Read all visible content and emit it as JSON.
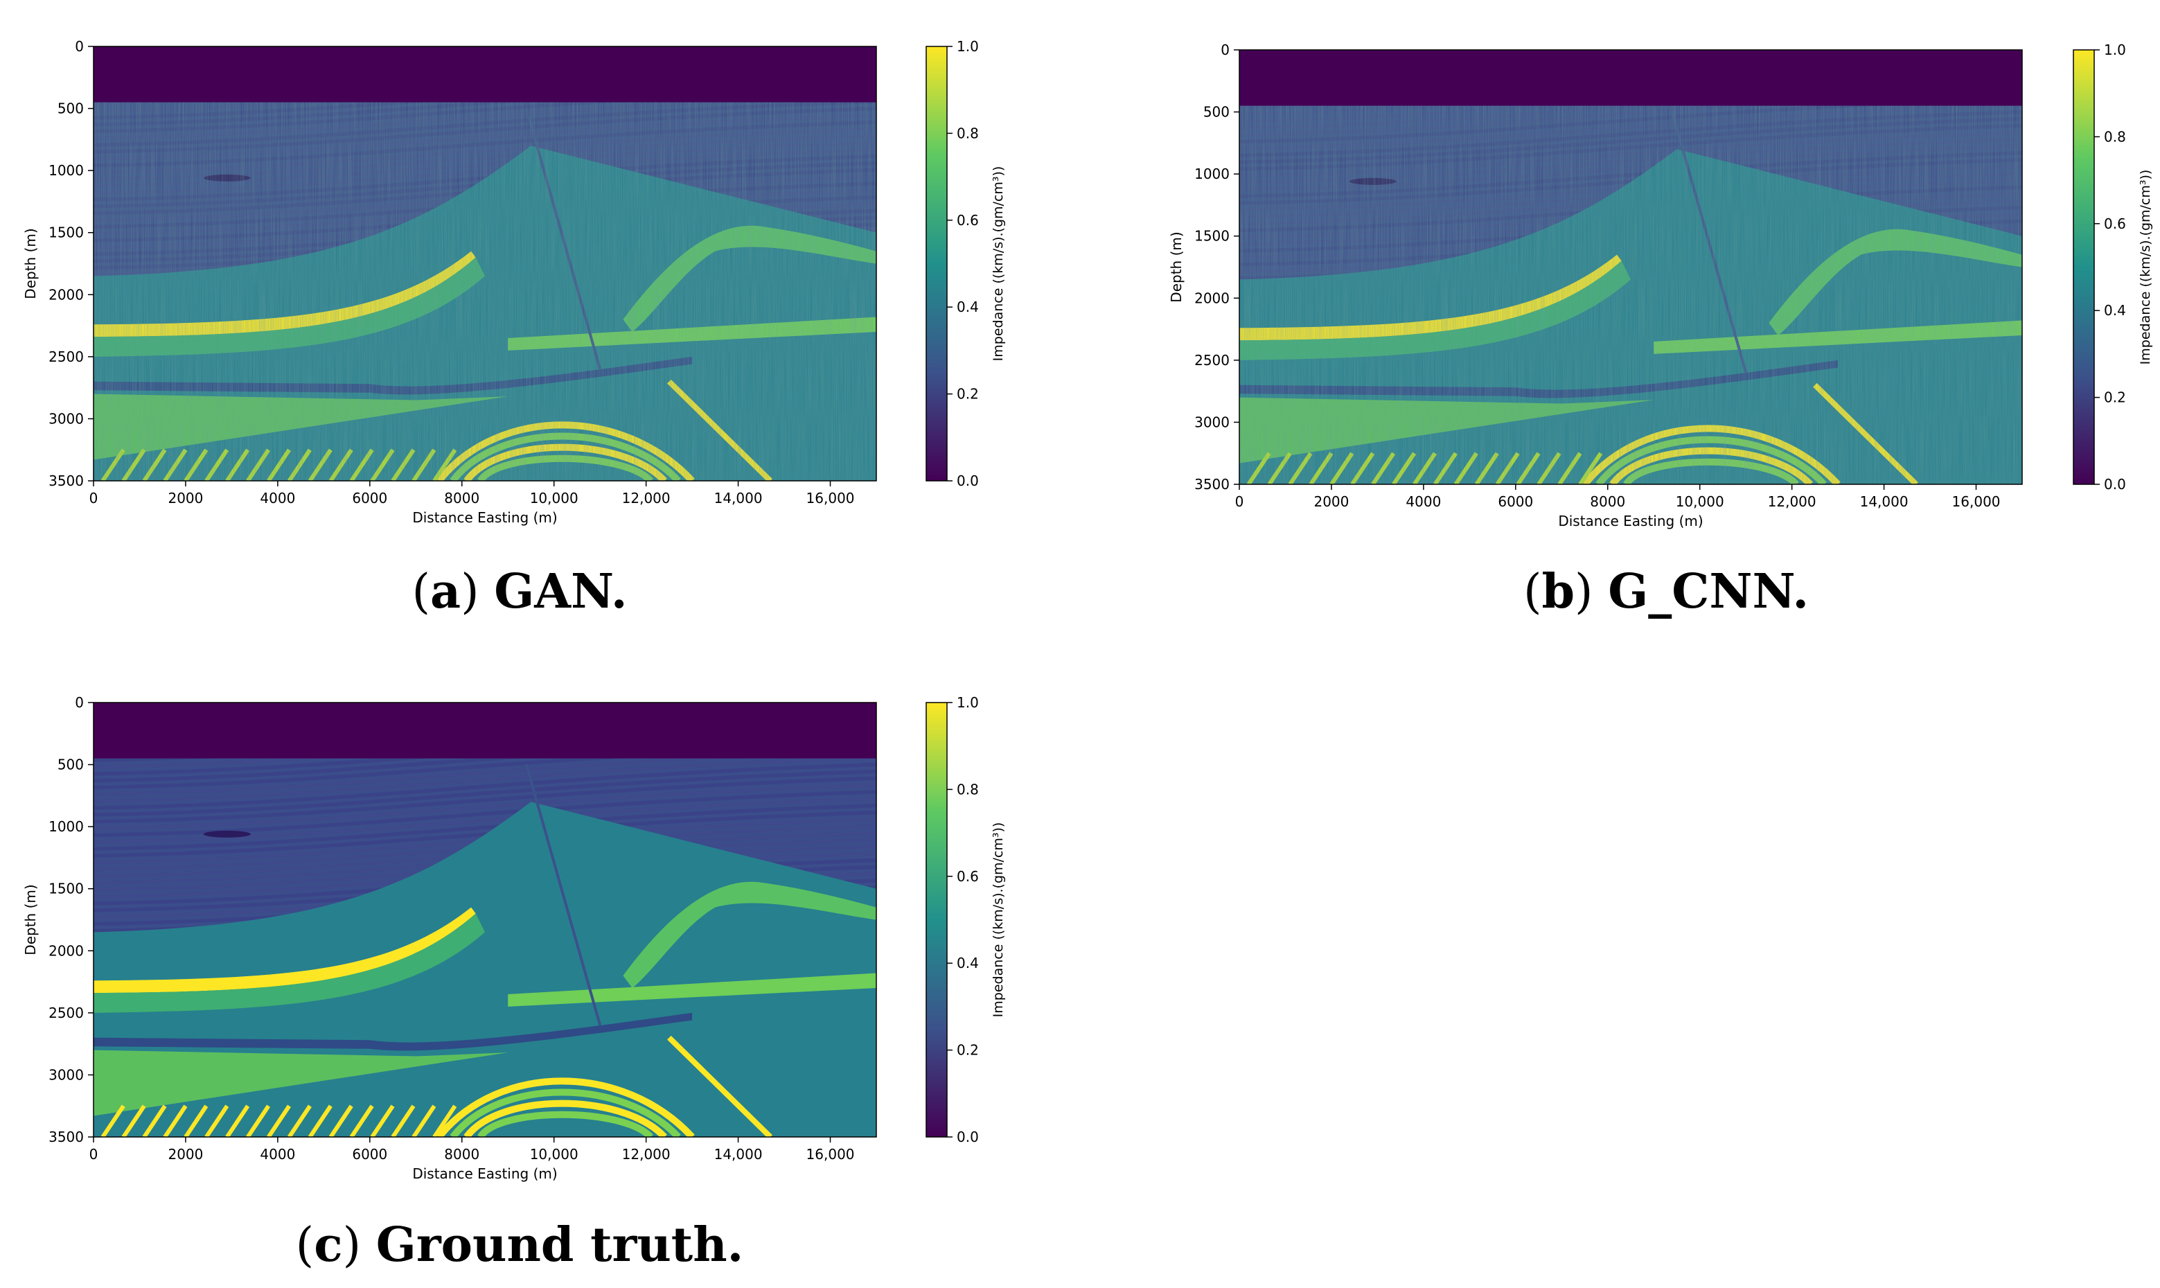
{
  "colorscale": [
    "#440154",
    "#3b528b",
    "#21918c",
    "#5ec962",
    "#fde725"
  ],
  "panels": [
    {
      "label": "(a)",
      "title": "GAN."
    },
    {
      "label": "(b)",
      "title": "G_CNN."
    },
    {
      "label": "(c)",
      "title": "Ground truth."
    }
  ],
  "chart_data": [
    {
      "type": "heatmap",
      "title": "",
      "xlabel": "Distance Easting (m)",
      "ylabel": "Depth (m)",
      "xlim": [
        0,
        17000
      ],
      "ylim": [
        3500,
        0
      ],
      "x_ticks": [
        0,
        2000,
        4000,
        6000,
        8000,
        10000,
        12000,
        14000,
        16000
      ],
      "x_tick_labels": [
        "0",
        "2000",
        "4000",
        "6000",
        "8000",
        "10,000",
        "12,000",
        "14,000",
        "16,000"
      ],
      "y_ticks": [
        0,
        500,
        1000,
        1500,
        2000,
        2500,
        3000,
        3500
      ],
      "y_tick_labels": [
        "0",
        "500",
        "1000",
        "1500",
        "2000",
        "2500",
        "3000",
        "3500"
      ],
      "colorbar": {
        "label": "Impedance ((km/s).(gm/cm³))",
        "range": [
          0,
          1
        ],
        "ticks": [
          "0.0",
          "0.2",
          "0.4",
          "0.6",
          "0.8",
          "1.0"
        ]
      }
    },
    {
      "type": "heatmap",
      "title": "",
      "xlabel": "Distance Easting (m)",
      "ylabel": "Depth (m)",
      "xlim": [
        0,
        17000
      ],
      "ylim": [
        3500,
        0
      ],
      "x_ticks": [
        0,
        2000,
        4000,
        6000,
        8000,
        10000,
        12000,
        14000,
        16000
      ],
      "x_tick_labels": [
        "0",
        "2000",
        "4000",
        "6000",
        "8000",
        "10,000",
        "12,000",
        "14,000",
        "16,000"
      ],
      "y_ticks": [
        0,
        500,
        1000,
        1500,
        2000,
        2500,
        3000,
        3500
      ],
      "y_tick_labels": [
        "0",
        "500",
        "1000",
        "1500",
        "2000",
        "2500",
        "3000",
        "3500"
      ],
      "colorbar": {
        "label": "Impedance ((km/s).(gm/cm³))",
        "range": [
          0,
          1
        ],
        "ticks": [
          "0.0",
          "0.2",
          "0.4",
          "0.6",
          "0.8",
          "1.0"
        ]
      }
    },
    {
      "type": "heatmap",
      "title": "",
      "xlabel": "Distance Easting (m)",
      "ylabel": "Depth (m)",
      "xlim": [
        0,
        17000
      ],
      "ylim": [
        3500,
        0
      ],
      "x_ticks": [
        0,
        2000,
        4000,
        6000,
        8000,
        10000,
        12000,
        14000,
        16000
      ],
      "x_tick_labels": [
        "0",
        "2000",
        "4000",
        "6000",
        "8000",
        "10,000",
        "12,000",
        "14,000",
        "16,000"
      ],
      "y_ticks": [
        0,
        500,
        1000,
        1500,
        2000,
        2500,
        3000,
        3500
      ],
      "y_tick_labels": [
        "0",
        "500",
        "1000",
        "1500",
        "2000",
        "2500",
        "3000",
        "3500"
      ],
      "colorbar": {
        "label": "Impedance ((km/s).(gm/cm³))",
        "range": [
          0,
          1
        ],
        "ticks": [
          "0.0",
          "0.2",
          "0.4",
          "0.6",
          "0.8",
          "1.0"
        ]
      }
    }
  ]
}
